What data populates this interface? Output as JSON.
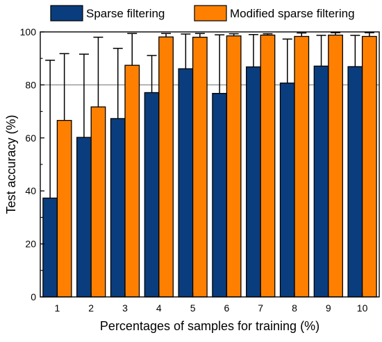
{
  "chart_data": {
    "type": "bar",
    "categories": [
      "1",
      "2",
      "3",
      "4",
      "5",
      "6",
      "7",
      "8",
      "9",
      "10"
    ],
    "series": [
      {
        "name": "Sparse filtering",
        "color": "#0a3d7e",
        "values": [
          37.3,
          60.2,
          67.3,
          77.1,
          86.1,
          76.8,
          86.8,
          80.7,
          87.1,
          86.9
        ],
        "error_upper": [
          89.3,
          91.6,
          93.8,
          91.1,
          99.2,
          98.9,
          99.0,
          97.3,
          98.7,
          98.7
        ]
      },
      {
        "name": "Modified sparse filtering",
        "color": "#ff8000",
        "values": [
          66.6,
          71.7,
          87.4,
          98.1,
          98.0,
          98.5,
          98.8,
          98.3,
          98.8,
          98.3
        ],
        "error_upper": [
          91.8,
          98.0,
          99.4,
          99.4,
          99.4,
          99.3,
          99.3,
          99.6,
          99.7,
          99.7
        ]
      }
    ],
    "xlabel": "Percentages of samples for training (%)",
    "ylabel": "Test accuracy (%)",
    "ylim": [
      0,
      100
    ],
    "yticks": [
      "0",
      "20",
      "40",
      "60",
      "80",
      "100"
    ],
    "gridlines": [
      80
    ],
    "legend": "top"
  }
}
